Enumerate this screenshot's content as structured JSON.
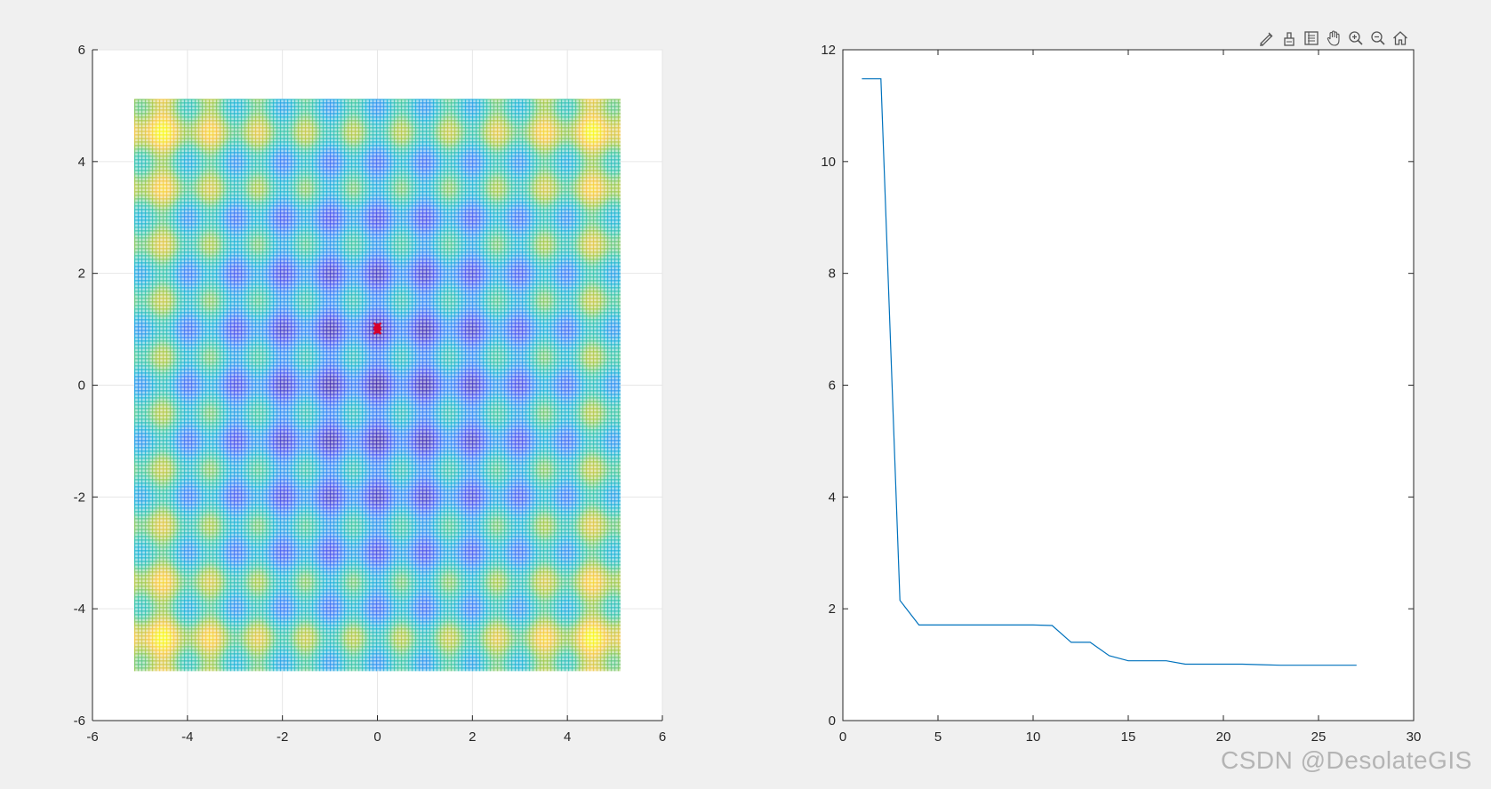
{
  "chart_data": [
    {
      "type": "heatmap",
      "description_function": "rastrigin",
      "xlim": [
        -6,
        6
      ],
      "ylim": [
        -6,
        6
      ],
      "x_ticks": [
        -6,
        -4,
        -2,
        0,
        2,
        4,
        6
      ],
      "y_ticks": [
        -6,
        -4,
        -2,
        0,
        2,
        4,
        6
      ],
      "x_tick_labels": [
        "-6",
        "-4",
        "-2",
        "0",
        "2",
        "4",
        "6"
      ],
      "y_tick_labels": [
        "-6",
        "-4",
        "-2",
        "0",
        "2",
        "4",
        "6"
      ],
      "surface_range": [
        -5.12,
        5.12
      ],
      "grid": true,
      "colormap": [
        "#3e26a8",
        "#4353f2",
        "#2e87f7",
        "#17b2d7",
        "#36c5a2",
        "#9ec846",
        "#f5c540",
        "#f9fb14"
      ],
      "marker_points": [
        {
          "x": 0,
          "y": 1.05
        },
        {
          "x": 0,
          "y": 0.98
        }
      ],
      "marker_color": "#d7002a"
    },
    {
      "type": "line",
      "xlim": [
        0,
        30
      ],
      "ylim": [
        0,
        12
      ],
      "x_ticks": [
        0,
        5,
        10,
        15,
        20,
        25,
        30
      ],
      "y_ticks": [
        0,
        2,
        4,
        6,
        8,
        10,
        12
      ],
      "x_tick_labels": [
        "0",
        "5",
        "10",
        "15",
        "20",
        "25",
        "30"
      ],
      "y_tick_labels": [
        "0",
        "2",
        "4",
        "6",
        "8",
        "10",
        "12"
      ],
      "grid": false,
      "series": [
        {
          "color": "#0072bd",
          "x": [
            1,
            2,
            3,
            4,
            5,
            6,
            7,
            8,
            9,
            10,
            11,
            12,
            13,
            14,
            15,
            16,
            17,
            18,
            19,
            20,
            21,
            22,
            23,
            24,
            25,
            26,
            27
          ],
          "y": [
            11.48,
            11.48,
            2.15,
            1.71,
            1.71,
            1.71,
            1.71,
            1.71,
            1.71,
            1.71,
            1.7,
            1.4,
            1.4,
            1.16,
            1.07,
            1.07,
            1.07,
            1.01,
            1.01,
            1.01,
            1.01,
            1.0,
            0.99,
            0.99,
            0.99,
            0.99,
            0.99
          ]
        }
      ]
    }
  ],
  "toolbar": {
    "icons": [
      "brush-icon",
      "data-tips-icon",
      "legend-icon",
      "pan-hand-icon",
      "zoom-in-icon",
      "zoom-out-icon",
      "home-icon"
    ]
  },
  "watermark": {
    "text": "CSDN @DesolateGIS"
  }
}
